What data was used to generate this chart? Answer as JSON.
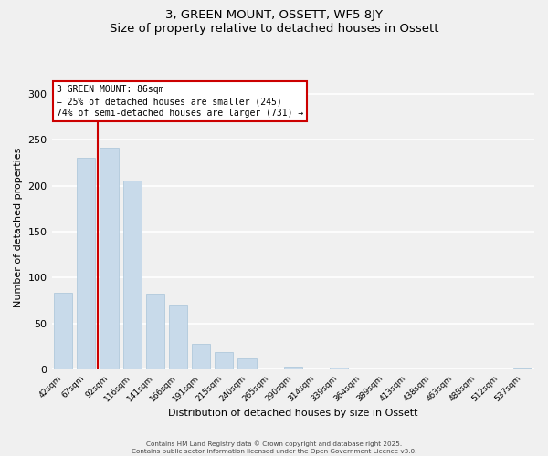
{
  "title": "3, GREEN MOUNT, OSSETT, WF5 8JY",
  "subtitle": "Size of property relative to detached houses in Ossett",
  "xlabel": "Distribution of detached houses by size in Ossett",
  "ylabel": "Number of detached properties",
  "bar_color": "#c8daea",
  "bar_edge_color": "#a8c4d8",
  "categories": [
    "42sqm",
    "67sqm",
    "92sqm",
    "116sqm",
    "141sqm",
    "166sqm",
    "191sqm",
    "215sqm",
    "240sqm",
    "265sqm",
    "290sqm",
    "314sqm",
    "339sqm",
    "364sqm",
    "389sqm",
    "413sqm",
    "438sqm",
    "463sqm",
    "488sqm",
    "512sqm",
    "537sqm"
  ],
  "values": [
    83,
    231,
    241,
    206,
    82,
    71,
    28,
    19,
    12,
    0,
    3,
    0,
    2,
    0,
    0,
    0,
    0,
    0,
    0,
    0,
    1
  ],
  "ylim": [
    0,
    310
  ],
  "yticks": [
    0,
    50,
    100,
    150,
    200,
    250,
    300
  ],
  "annotation_title": "3 GREEN MOUNT: 86sqm",
  "annotation_line1": "← 25% of detached houses are smaller (245)",
  "annotation_line2": "74% of semi-detached houses are larger (731) →",
  "vline_x": 1.5,
  "box_color": "#ffffff",
  "box_edge_color": "#cc0000",
  "vline_color": "#cc0000",
  "footer1": "Contains HM Land Registry data © Crown copyright and database right 2025.",
  "footer2": "Contains public sector information licensed under the Open Government Licence v3.0.",
  "background_color": "#f0f0f0",
  "plot_bg_color": "#f0f0f0",
  "grid_color": "#ffffff"
}
